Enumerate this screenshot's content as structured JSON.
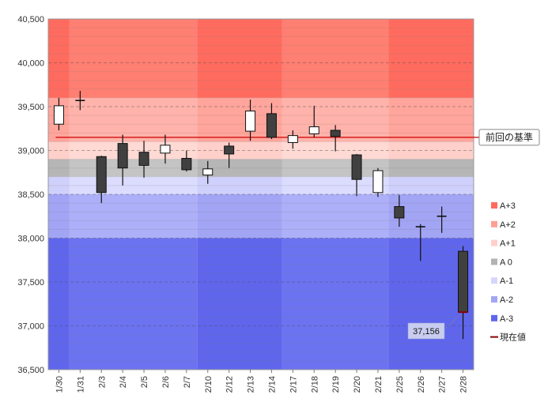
{
  "chart_data": {
    "type": "candlestick",
    "title": "",
    "xlabel": "",
    "ylabel": "",
    "ylim": [
      36500,
      40500
    ],
    "yticks": [
      36500,
      37000,
      37500,
      38000,
      38500,
      39000,
      39500,
      40000,
      40500
    ],
    "ytick_labels": [
      "36,500",
      "37,000",
      "37,500",
      "38,000",
      "38,500",
      "39,000",
      "39,500",
      "40,000",
      "40,500"
    ],
    "categories": [
      "1/30",
      "1/31",
      "2/3",
      "2/4",
      "2/5",
      "2/6",
      "2/7",
      "2/10",
      "2/12",
      "2/13",
      "2/14",
      "2/17",
      "2/18",
      "2/19",
      "2/20",
      "2/21",
      "2/25",
      "2/26",
      "2/27",
      "2/28"
    ],
    "candles": [
      {
        "date": "1/30",
        "open": 39300,
        "close": 39510,
        "high": 39600,
        "low": 39230
      },
      {
        "date": "1/31",
        "open": 39570,
        "close": 39570,
        "high": 39680,
        "low": 39460
      },
      {
        "date": "2/3",
        "open": 38930,
        "close": 38520,
        "high": 38940,
        "low": 38400
      },
      {
        "date": "2/4",
        "open": 39080,
        "close": 38800,
        "high": 39180,
        "low": 38600
      },
      {
        "date": "2/5",
        "open": 38980,
        "close": 38830,
        "high": 39110,
        "low": 38690
      },
      {
        "date": "2/6",
        "open": 38970,
        "close": 39060,
        "high": 39180,
        "low": 38850
      },
      {
        "date": "2/7",
        "open": 38910,
        "close": 38780,
        "high": 39000,
        "low": 38760
      },
      {
        "date": "2/10",
        "open": 38720,
        "close": 38790,
        "high": 38880,
        "low": 38620
      },
      {
        "date": "2/12",
        "open": 39050,
        "close": 38960,
        "high": 39090,
        "low": 38800
      },
      {
        "date": "2/13",
        "open": 39220,
        "close": 39450,
        "high": 39580,
        "low": 39110
      },
      {
        "date": "2/14",
        "open": 39420,
        "close": 39150,
        "high": 39540,
        "low": 39130
      },
      {
        "date": "2/17",
        "open": 39090,
        "close": 39170,
        "high": 39230,
        "low": 39020
      },
      {
        "date": "2/18",
        "open": 39190,
        "close": 39270,
        "high": 39510,
        "low": 39150
      },
      {
        "date": "2/19",
        "open": 39230,
        "close": 39160,
        "high": 39290,
        "low": 38990
      },
      {
        "date": "2/20",
        "open": 38950,
        "close": 38670,
        "high": 38960,
        "low": 38480
      },
      {
        "date": "2/21",
        "open": 38520,
        "close": 38770,
        "high": 38800,
        "low": 38470
      },
      {
        "date": "2/25",
        "open": 38360,
        "close": 38230,
        "high": 38490,
        "low": 38130
      },
      {
        "date": "2/26",
        "open": 38150,
        "close": 38130,
        "high": 38160,
        "low": 37740
      },
      {
        "date": "2/27",
        "open": 38250,
        "close": 38250,
        "high": 38360,
        "low": 38060
      },
      {
        "date": "2/28",
        "open": 37850,
        "close": 37156,
        "high": 37910,
        "low": 36850
      }
    ],
    "shading_groups": [
      {
        "from": "1/30",
        "to": "1/30",
        "tone": "dark"
      },
      {
        "from": "1/31",
        "to": "2/7",
        "tone": "light"
      },
      {
        "from": "2/10",
        "to": "2/14",
        "tone": "dark"
      },
      {
        "from": "2/17",
        "to": "2/21",
        "tone": "light"
      },
      {
        "from": "2/25",
        "to": "2/28",
        "tone": "dark"
      }
    ],
    "bands": [
      {
        "name": "A+3",
        "from": 39600,
        "to": 40500,
        "color": "#ff7f72",
        "color_dark": "#ff6b5e"
      },
      {
        "name": "A+2",
        "from": 39100,
        "to": 39600,
        "color": "#ffb3ab",
        "color_dark": "#ffa59c"
      },
      {
        "name": "A+1",
        "from": 38900,
        "to": 39100,
        "color": "#ffd9d4",
        "color_dark": "#ffcfc9"
      },
      {
        "name": "A 0",
        "from": 38700,
        "to": 38900,
        "color": "#c4c4c4",
        "color_dark": "#b6b6b6"
      },
      {
        "name": "A-1",
        "from": 38500,
        "to": 38700,
        "color": "#dcdcff",
        "color_dark": "#d0d0fc"
      },
      {
        "name": "A-2",
        "from": 38000,
        "to": 38500,
        "color": "#adaff8",
        "color_dark": "#a2a4f4"
      },
      {
        "name": "A-3",
        "from": 36500,
        "to": 38000,
        "color": "#6b73f0",
        "color_dark": "#5f66ec"
      }
    ],
    "reference_line": {
      "value": 39150,
      "label": "前回の基準",
      "color": "#cc0000"
    },
    "current_value": {
      "value": 37156,
      "label": "37,156",
      "legend": "現在値",
      "color": "#8b0000"
    },
    "legend": [
      {
        "name": "A+3",
        "color": "#ff6b5e"
      },
      {
        "name": "A+2",
        "color": "#ff9f96"
      },
      {
        "name": "A+1",
        "color": "#ffd0ca"
      },
      {
        "name": "A 0",
        "color": "#b3b3b3"
      },
      {
        "name": "A-1",
        "color": "#d6d6fc"
      },
      {
        "name": "A-2",
        "color": "#a3a6f4"
      },
      {
        "name": "A-3",
        "color": "#5f66ec"
      }
    ],
    "legend_position": "right",
    "up_color": "#ffffff",
    "down_color": "#404040"
  }
}
